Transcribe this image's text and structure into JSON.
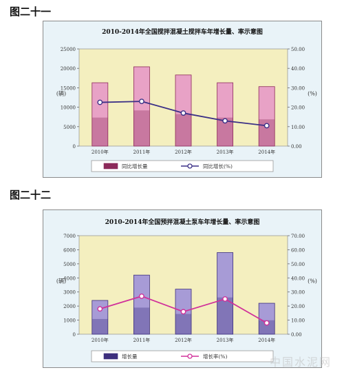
{
  "figures": [
    {
      "label": "图二十一"
    },
    {
      "label": "图二十二"
    }
  ],
  "watermark": "中国水泥网",
  "chart_data": [
    {
      "type": "bar",
      "title": "2010-2014年全国搅拌混凝土搅拌车年增长量、率示意图",
      "categories": [
        "2010年",
        "2011年",
        "2012年",
        "2013年",
        "2014年"
      ],
      "ylabel_left": "(辆)",
      "ylabel_right": "(%)",
      "ylim_left": [
        0,
        25000
      ],
      "ylim_right": [
        0,
        50
      ],
      "yticks_left": [
        "0",
        "5000",
        "10000",
        "15000",
        "20000",
        "25000"
      ],
      "yticks_right": [
        "0.00",
        "10.00",
        "20.00",
        "30.00",
        "40.00",
        "50.00"
      ],
      "grid": false,
      "legend": "bottom",
      "colors": {
        "bar_fill": "#e8a2c6",
        "bar_dark": "#8c2a5a",
        "line": "#3a2f86"
      },
      "series": [
        {
          "name": "同比增长量",
          "kind": "bar",
          "axis": "left",
          "values": [
            16300,
            20400,
            18300,
            16300,
            15300
          ]
        },
        {
          "name": "同比增长(%)",
          "kind": "line",
          "axis": "right",
          "values": [
            22.5,
            23.0,
            17.0,
            13.0,
            10.5
          ]
        }
      ]
    },
    {
      "type": "bar",
      "title": "2010-2014年全国预拌混凝土泵车年增长量、率示意图",
      "categories": [
        "2010年",
        "2011年",
        "2012年",
        "2013年",
        "2014年"
      ],
      "ylabel_left": "(辆)",
      "ylabel_right": "(%)",
      "ylim_left": [
        0,
        7000
      ],
      "ylim_right": [
        0,
        70
      ],
      "yticks_left": [
        "0",
        "1000",
        "2000",
        "3000",
        "4000",
        "5000",
        "6000",
        "7000"
      ],
      "yticks_right": [
        "0.00",
        "10.00",
        "20.00",
        "30.00",
        "40.00",
        "50.00",
        "60.00",
        "70.00"
      ],
      "grid": false,
      "legend": "bottom",
      "colors": {
        "bar_fill": "#a79bd6",
        "bar_dark": "#3d2f7d",
        "line": "#d0309a"
      },
      "series": [
        {
          "name": "增长量",
          "kind": "bar",
          "axis": "left",
          "values": [
            2400,
            4200,
            3200,
            5800,
            2200
          ]
        },
        {
          "name": "增长率(%)",
          "kind": "line",
          "axis": "right",
          "values": [
            18.0,
            27.0,
            16.0,
            25.0,
            8.0
          ]
        }
      ]
    }
  ]
}
